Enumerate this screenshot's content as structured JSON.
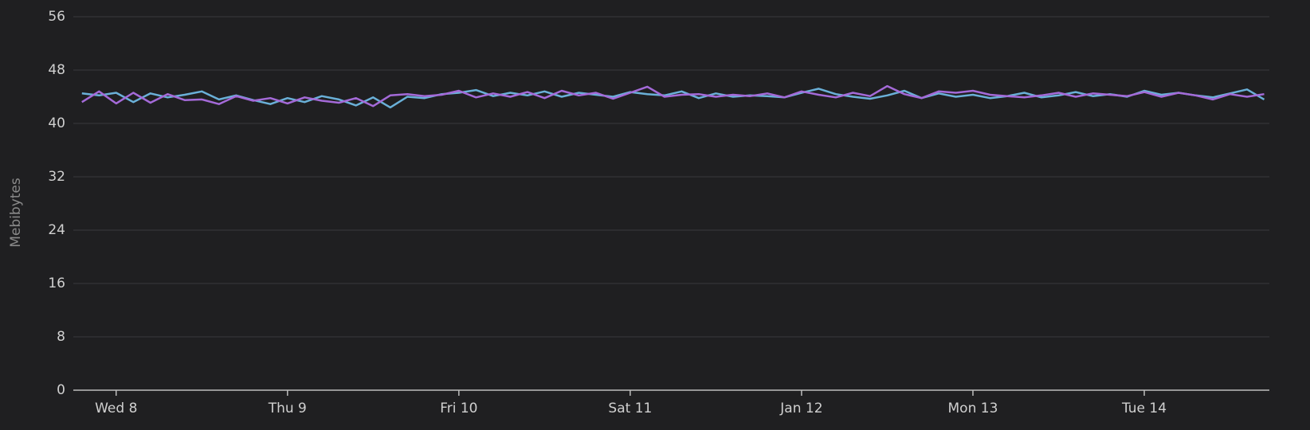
{
  "chart_data": {
    "type": "line",
    "ylabel": "Mebibytes",
    "xlim": [
      7.75,
      14.73
    ],
    "xticks": [
      {
        "value": 8,
        "label": "Wed 8"
      },
      {
        "value": 9,
        "label": "Thu 9"
      },
      {
        "value": 10,
        "label": "Fri 10"
      },
      {
        "value": 11,
        "label": "Sat 11"
      },
      {
        "value": 12,
        "label": "Jan 12"
      },
      {
        "value": 13,
        "label": "Mon 13"
      },
      {
        "value": 14,
        "label": "Tue 14"
      }
    ],
    "ylim": [
      0,
      56
    ],
    "yticks": [
      0,
      8,
      16,
      24,
      32,
      40,
      48,
      56
    ],
    "grid": true,
    "x": [
      7.8,
      7.9,
      8.0,
      8.1,
      8.2,
      8.3,
      8.4,
      8.5,
      8.6,
      8.7,
      8.8,
      8.9,
      9.0,
      9.1,
      9.2,
      9.3,
      9.4,
      9.5,
      9.6,
      9.7,
      9.8,
      9.9,
      10.0,
      10.1,
      10.2,
      10.3,
      10.4,
      10.5,
      10.6,
      10.7,
      10.8,
      10.9,
      11.0,
      11.1,
      11.2,
      11.3,
      11.4,
      11.5,
      11.6,
      11.7,
      11.8,
      11.9,
      12.0,
      12.1,
      12.2,
      12.3,
      12.4,
      12.5,
      12.6,
      12.7,
      12.8,
      12.9,
      13.0,
      13.1,
      13.2,
      13.3,
      13.4,
      13.5,
      13.6,
      13.7,
      13.8,
      13.9,
      14.0,
      14.1,
      14.2,
      14.3,
      14.4,
      14.5,
      14.6,
      14.7
    ],
    "series": [
      {
        "color": "#6ab0d8",
        "values": [
          44.5,
          44.2,
          44.6,
          43.2,
          44.5,
          43.9,
          44.3,
          44.8,
          43.6,
          44.2,
          43.5,
          42.9,
          43.8,
          43.2,
          44.1,
          43.6,
          42.7,
          43.9,
          42.4,
          44.0,
          43.8,
          44.4,
          44.6,
          45.0,
          44.1,
          44.6,
          44.2,
          44.8,
          44.0,
          44.6,
          44.3,
          44.0,
          44.7,
          44.4,
          44.2,
          44.8,
          43.8,
          44.5,
          44.0,
          44.2,
          44.1,
          43.9,
          44.6,
          45.2,
          44.4,
          44.0,
          43.7,
          44.2,
          44.9,
          43.8,
          44.5,
          44.0,
          44.3,
          43.8,
          44.1,
          44.6,
          43.9,
          44.2,
          44.7,
          44.1,
          44.4,
          44.0,
          44.9,
          44.3,
          44.6,
          44.2,
          43.9,
          44.5,
          45.1,
          43.6
        ]
      },
      {
        "color": "#a46ad8",
        "values": [
          43.2,
          44.8,
          43.0,
          44.6,
          43.1,
          44.4,
          43.5,
          43.6,
          42.9,
          44.1,
          43.4,
          43.8,
          43.0,
          43.9,
          43.4,
          43.1,
          43.8,
          42.6,
          44.2,
          44.4,
          44.1,
          44.3,
          44.9,
          43.9,
          44.5,
          44.0,
          44.7,
          43.8,
          44.9,
          44.2,
          44.6,
          43.7,
          44.6,
          45.5,
          44.0,
          44.3,
          44.4,
          44.0,
          44.3,
          44.1,
          44.5,
          43.9,
          44.8,
          44.3,
          43.9,
          44.6,
          44.1,
          45.6,
          44.4,
          43.8,
          44.8,
          44.6,
          44.9,
          44.3,
          44.1,
          43.9,
          44.2,
          44.6,
          44.0,
          44.5,
          44.3,
          44.1,
          44.7,
          44.0,
          44.6,
          44.2,
          43.6,
          44.4,
          44.0,
          44.4
        ]
      }
    ]
  }
}
